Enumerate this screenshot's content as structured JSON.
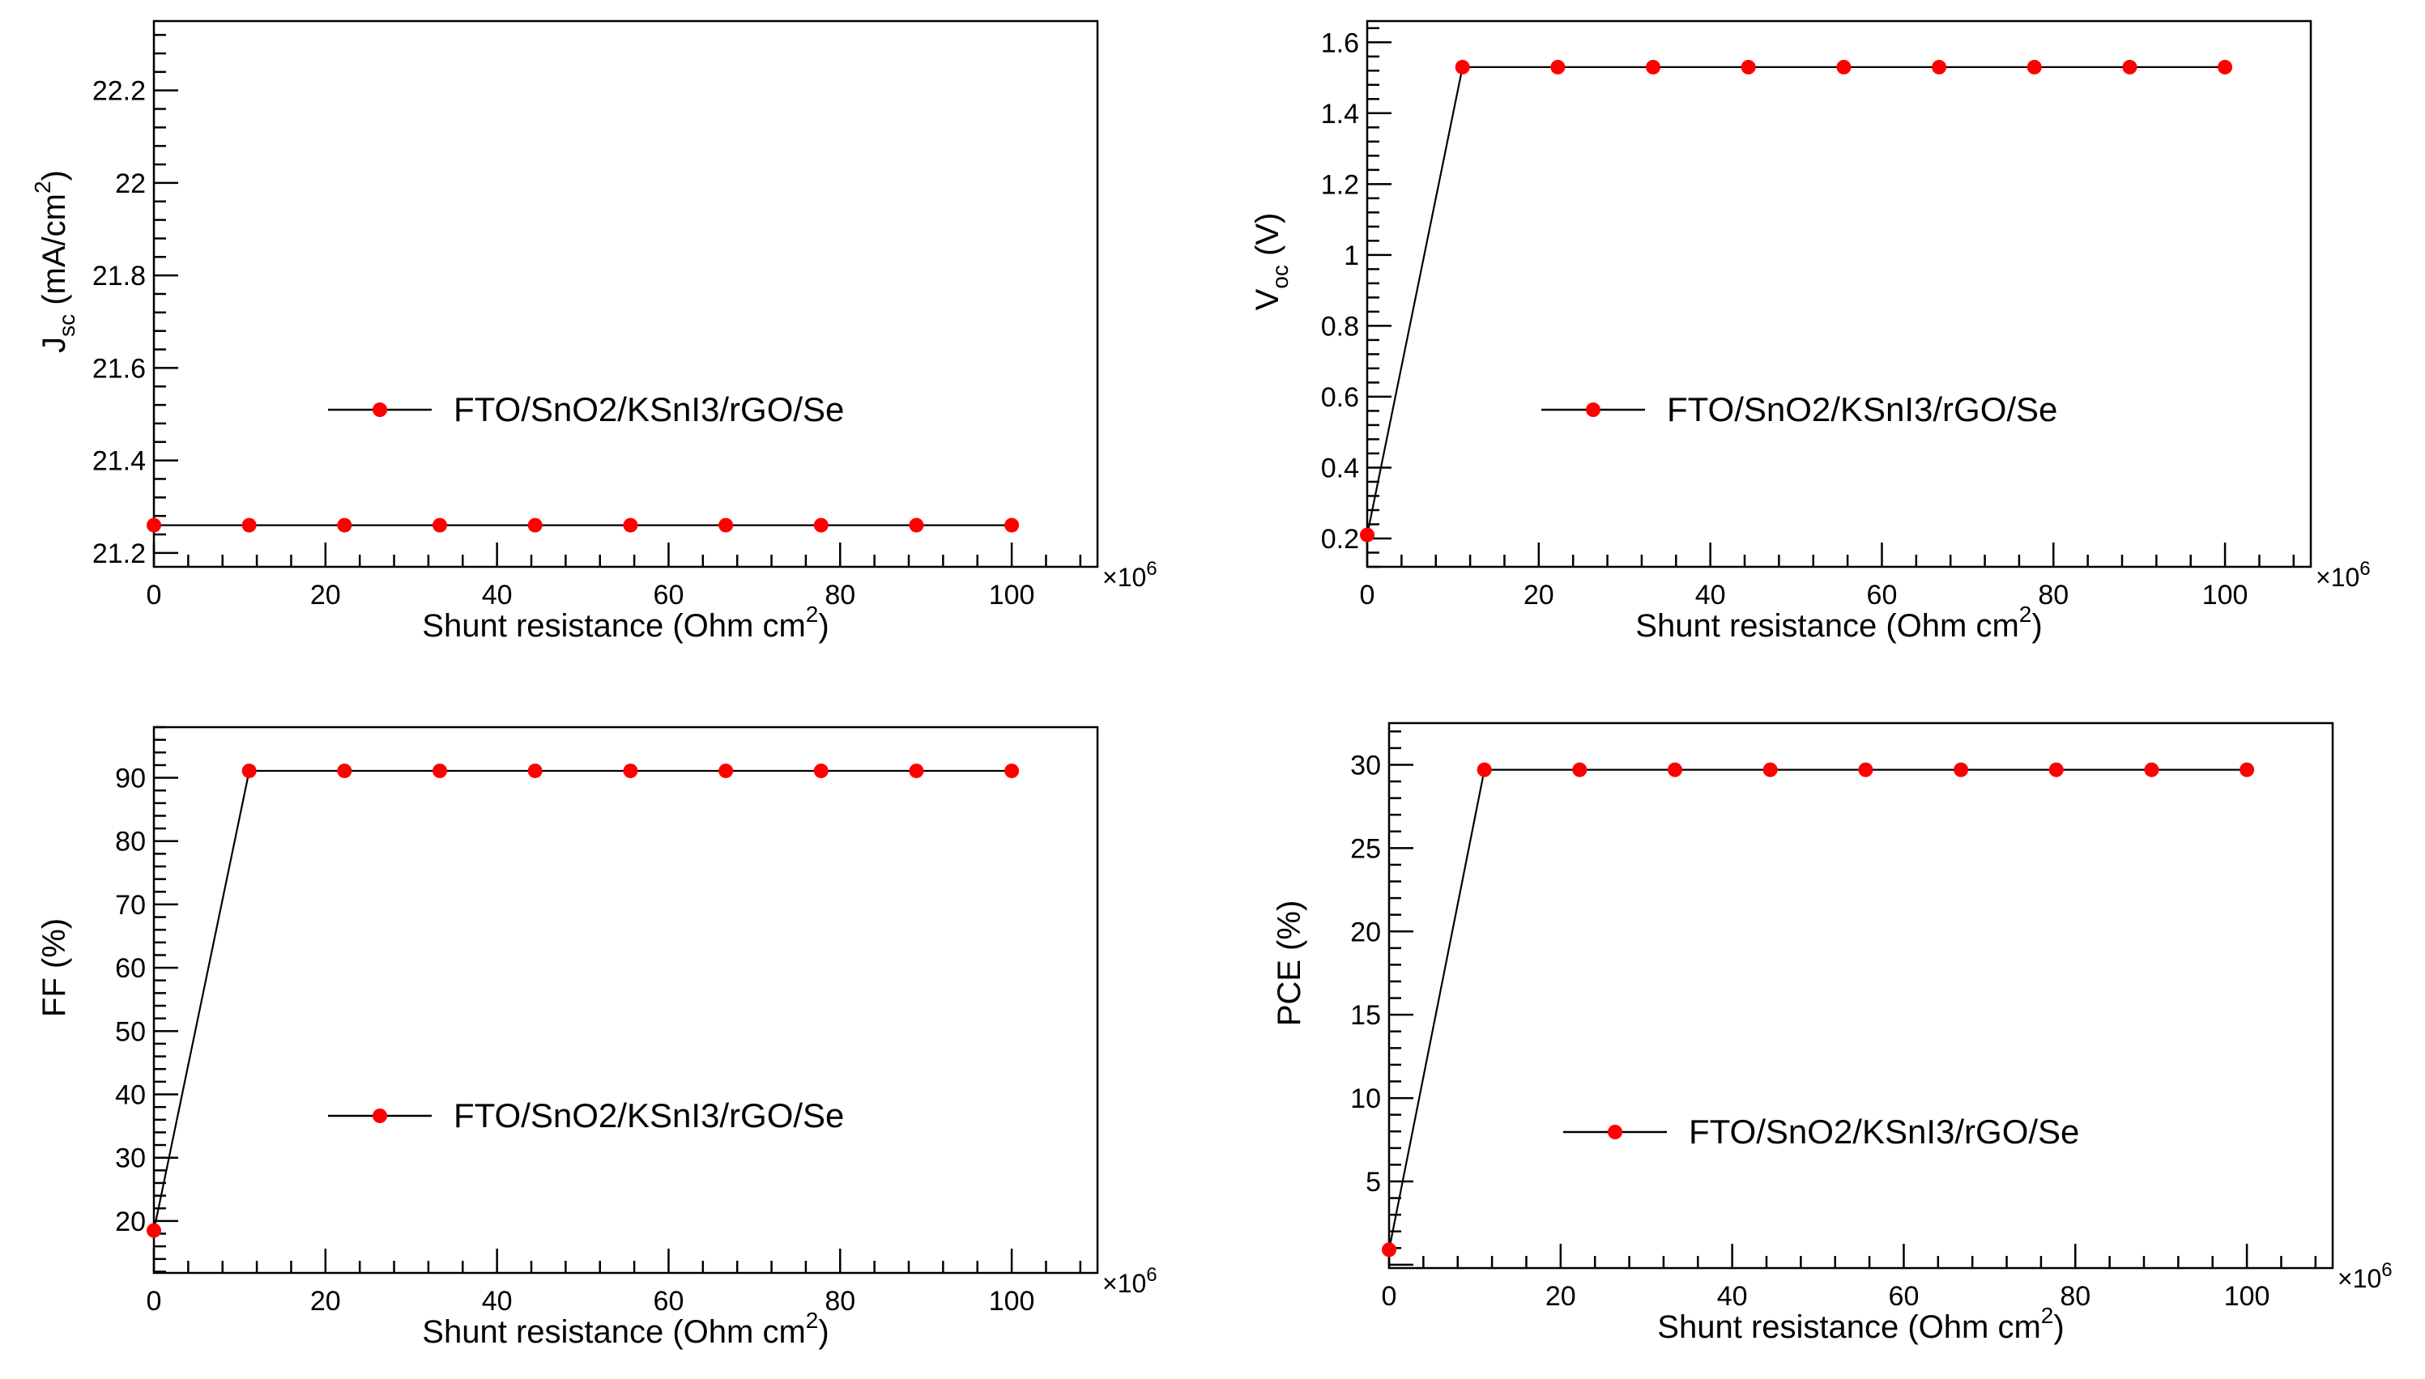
{
  "chart_data": [
    {
      "type": "line",
      "xlabel": "Shunt resistance (Ohm cm",
      "xlabel_sup": "2",
      "xlabel_end": ")",
      "ylabel": "J",
      "ylabel_sub": "sc",
      "ylabel_rest": " (mA/cm",
      "ylabel_sup": "2",
      "ylabel_end": ")",
      "x_multiplier": "×10",
      "x_multiplier_exp": "6",
      "xlim": [
        0,
        110
      ],
      "ylim": [
        21.17,
        22.35
      ],
      "xticks": [
        0,
        20,
        40,
        60,
        80,
        100
      ],
      "yticks": [
        21.2,
        21.4,
        21.6,
        21.8,
        22,
        22.2
      ],
      "ytick_labels": [
        "21.2",
        "21.4",
        "21.6",
        "21.8",
        "22",
        "22.2"
      ],
      "legend": "FTO/SnO2/KSnI3/rGO/Se",
      "series": [
        {
          "name": "FTO/SnO2/KSnI3/rGO/Se",
          "x": [
            0.001,
            11.11,
            22.22,
            33.33,
            44.44,
            55.56,
            66.67,
            77.78,
            88.89,
            100
          ],
          "y": [
            21.26,
            21.26,
            21.26,
            21.26,
            21.26,
            21.26,
            21.26,
            21.26,
            21.26,
            21.26
          ]
        }
      ]
    },
    {
      "type": "line",
      "xlabel": "Shunt resistance (Ohm cm",
      "xlabel_sup": "2",
      "xlabel_end": ")",
      "ylabel": "V",
      "ylabel_sub": "oc",
      "ylabel_rest": " (V)",
      "ylabel_sup": "",
      "ylabel_end": "",
      "x_multiplier": "×10",
      "x_multiplier_exp": "6",
      "xlim": [
        0,
        110
      ],
      "ylim": [
        0.12,
        1.66
      ],
      "xticks": [
        0,
        20,
        40,
        60,
        80,
        100
      ],
      "yticks": [
        0.2,
        0.4,
        0.6,
        0.8,
        1,
        1.2,
        1.4,
        1.6
      ],
      "ytick_labels": [
        "0.2",
        "0.4",
        "0.6",
        "0.8",
        "1",
        "1.2",
        "1.4",
        "1.6"
      ],
      "legend": "FTO/SnO2/KSnI3/rGO/Se",
      "series": [
        {
          "name": "FTO/SnO2/KSnI3/rGO/Se",
          "x": [
            0.001,
            11.11,
            22.22,
            33.33,
            44.44,
            55.56,
            66.67,
            77.78,
            88.89,
            100
          ],
          "y": [
            0.21,
            1.53,
            1.53,
            1.53,
            1.53,
            1.53,
            1.53,
            1.53,
            1.53,
            1.53
          ]
        }
      ]
    },
    {
      "type": "line",
      "xlabel": "Shunt resistance (Ohm cm",
      "xlabel_sup": "2",
      "xlabel_end": ")",
      "ylabel": "FF (%)",
      "ylabel_sub": "",
      "ylabel_rest": "",
      "ylabel_sup": "",
      "ylabel_end": "",
      "x_multiplier": "×10",
      "x_multiplier_exp": "6",
      "xlim": [
        0,
        110
      ],
      "ylim": [
        11.8,
        98
      ],
      "xticks": [
        0,
        20,
        40,
        60,
        80,
        100
      ],
      "yticks": [
        20,
        30,
        40,
        50,
        60,
        70,
        80,
        90
      ],
      "ytick_labels": [
        "20",
        "30",
        "40",
        "50",
        "60",
        "70",
        "80",
        "90"
      ],
      "legend": "FTO/SnO2/KSnI3/rGO/Se",
      "series": [
        {
          "name": "FTO/SnO2/KSnI3/rGO/Se",
          "x": [
            0.001,
            11.11,
            22.22,
            33.33,
            44.44,
            55.56,
            66.67,
            77.78,
            88.89,
            100
          ],
          "y": [
            18.5,
            91.1,
            91.1,
            91.1,
            91.1,
            91.1,
            91.1,
            91.1,
            91.1,
            91.1
          ]
        }
      ]
    },
    {
      "type": "line",
      "xlabel": "Shunt resistance (Ohm cm",
      "xlabel_sup": "2",
      "xlabel_end": ")",
      "ylabel": "PCE (%)",
      "ylabel_sub": "",
      "ylabel_rest": "",
      "ylabel_sup": "",
      "ylabel_end": "",
      "x_multiplier": "×10",
      "x_multiplier_exp": "6",
      "xlim": [
        0,
        110
      ],
      "ylim": [
        -0.2,
        32.5
      ],
      "xticks": [
        0,
        20,
        40,
        60,
        80,
        100
      ],
      "yticks": [
        5,
        10,
        15,
        20,
        25,
        30
      ],
      "ytick_labels": [
        "5",
        "10",
        "15",
        "20",
        "25",
        "30"
      ],
      "legend": "FTO/SnO2/KSnI3/rGO/Se",
      "series": [
        {
          "name": "FTO/SnO2/KSnI3/rGO/Se",
          "x": [
            0.001,
            11.11,
            22.22,
            33.33,
            44.44,
            55.56,
            66.67,
            77.78,
            88.89,
            100
          ],
          "y": [
            0.9,
            29.7,
            29.7,
            29.7,
            29.7,
            29.7,
            29.7,
            29.7,
            29.7,
            29.7
          ]
        }
      ]
    }
  ],
  "colors": {
    "marker": "#ff0000",
    "line": "#000000",
    "axis": "#000000"
  }
}
